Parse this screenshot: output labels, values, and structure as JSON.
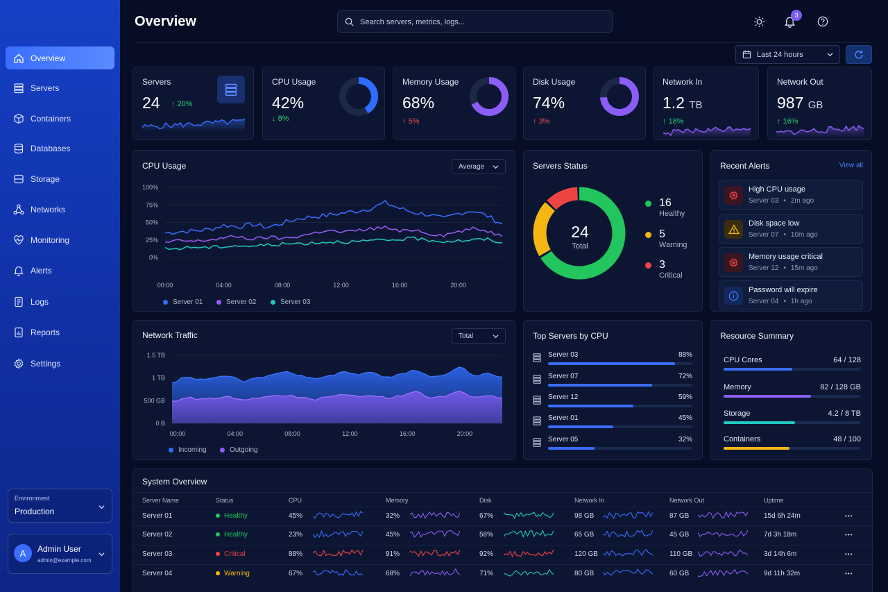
{
  "sidebar": {
    "items": [
      {
        "label": "Overview",
        "icon": "home-icon",
        "active": true
      },
      {
        "label": "Servers",
        "icon": "server-icon"
      },
      {
        "label": "Containers",
        "icon": "cube-icon"
      },
      {
        "label": "Databases",
        "icon": "database-icon"
      },
      {
        "label": "Storage",
        "icon": "storage-icon"
      },
      {
        "label": "Networks",
        "icon": "network-icon"
      },
      {
        "label": "Monitoring",
        "icon": "monitoring-icon"
      },
      {
        "label": "Alerts",
        "icon": "bell-icon"
      },
      {
        "label": "Logs",
        "icon": "document-icon"
      },
      {
        "label": "Reports",
        "icon": "report-icon"
      },
      {
        "label": "Settings",
        "icon": "gear-icon"
      }
    ],
    "environment": {
      "label": "Environment",
      "value": "Production"
    },
    "user": {
      "initial": "A",
      "name": "Admin User",
      "email": "admin@example.com"
    }
  },
  "header": {
    "title": "Overview",
    "search_placeholder": "Search servers, metrics, logs...",
    "notification_count": "3",
    "time_range": "Last 24 hours"
  },
  "kpis": [
    {
      "title": "Servers",
      "value": "24",
      "unit": "",
      "change": "20%",
      "direction": "up"
    },
    {
      "title": "CPU Usage",
      "value": "42%",
      "unit": "",
      "change": "8%",
      "direction": "down",
      "ring": 0.42,
      "ring_color": "#2f6cff"
    },
    {
      "title": "Memory Usage",
      "value": "68%",
      "unit": "",
      "change": "5%",
      "direction": "up",
      "ring": 0.68,
      "ring_color": "#8b5cf6"
    },
    {
      "title": "Disk Usage",
      "value": "74%",
      "unit": "",
      "change": "3%",
      "direction": "up",
      "ring": 0.74,
      "ring_color": "#8b5cf6"
    },
    {
      "title": "Network In",
      "value": "1.2",
      "unit": "TB",
      "change": "18%",
      "direction": "up"
    },
    {
      "title": "Network Out",
      "value": "987",
      "unit": "GB",
      "change": "16%",
      "direction": "up"
    }
  ],
  "cpu_chart": {
    "title": "CPU Usage",
    "selector": "Average",
    "chart_data": {
      "type": "line",
      "x": [
        "00:00",
        "01:00",
        "02:00",
        "03:00",
        "04:00",
        "05:00",
        "06:00",
        "07:00",
        "08:00",
        "09:00",
        "10:00",
        "11:00",
        "12:00",
        "13:00",
        "14:00",
        "15:00",
        "16:00",
        "17:00",
        "18:00",
        "19:00",
        "20:00",
        "21:00",
        "22:00",
        "23:00"
      ],
      "xticks": [
        "00:00",
        "04:00",
        "08:00",
        "12:00",
        "16:00",
        "20:00"
      ],
      "yticks": [
        "0%",
        "25%",
        "50%",
        "75%",
        "100%"
      ],
      "ylim": [
        0,
        100
      ],
      "series": [
        {
          "name": "Server 01",
          "color": "#3b6cff",
          "values": [
            35,
            37,
            38,
            40,
            46,
            44,
            47,
            43,
            49,
            55,
            58,
            60,
            63,
            66,
            70,
            78,
            70,
            64,
            61,
            55,
            63,
            67,
            59,
            48
          ]
        },
        {
          "name": "Server 02",
          "color": "#9b5cf6",
          "values": [
            21,
            24,
            23,
            25,
            28,
            30,
            26,
            29,
            27,
            30,
            34,
            39,
            36,
            38,
            41,
            43,
            37,
            40,
            34,
            32,
            37,
            41,
            38,
            30
          ]
        },
        {
          "name": "Server 03",
          "color": "#22c7c0",
          "values": [
            12,
            13,
            15,
            14,
            16,
            17,
            16,
            18,
            19,
            20,
            21,
            22,
            23,
            22,
            24,
            24,
            26,
            27,
            25,
            23,
            24,
            25,
            26,
            21
          ]
        }
      ]
    }
  },
  "server_status": {
    "title": "Servers Status",
    "total": "24",
    "total_label": "Total",
    "chart_data": {
      "type": "pie",
      "slices": [
        {
          "name": "Healthy",
          "value": 16,
          "color": "#22c55e"
        },
        {
          "name": "Warning",
          "value": 5,
          "color": "#f5b614"
        },
        {
          "name": "Critical",
          "value": 3,
          "color": "#ef4444"
        }
      ]
    }
  },
  "alerts": {
    "title": "Recent Alerts",
    "view_all": "View all",
    "items": [
      {
        "title": "High CPU usage",
        "server": "Server 03",
        "time": "2m ago",
        "icon": "chip-icon",
        "color": "#ef4444"
      },
      {
        "title": "Disk space low",
        "server": "Server 07",
        "time": "10m ago",
        "icon": "warning-icon",
        "color": "#f5b614"
      },
      {
        "title": "Memory usage critical",
        "server": "Server 12",
        "time": "15m ago",
        "icon": "chip-icon",
        "color": "#ef4444"
      },
      {
        "title": "Password will expire",
        "server": "Server 04",
        "time": "1h ago",
        "icon": "info-icon",
        "color": "#3b82f6"
      }
    ]
  },
  "network_chart": {
    "title": "Network Traffic",
    "selector": "Total",
    "chart_data": {
      "type": "area",
      "x": [
        "00:00",
        "01:00",
        "02:00",
        "03:00",
        "04:00",
        "05:00",
        "06:00",
        "07:00",
        "08:00",
        "09:00",
        "10:00",
        "11:00",
        "12:00",
        "13:00",
        "14:00",
        "15:00",
        "16:00",
        "17:00",
        "18:00",
        "19:00",
        "20:00",
        "21:00",
        "22:00",
        "23:00"
      ],
      "xticks": [
        "00:00",
        "04:00",
        "08:00",
        "12:00",
        "16:00",
        "20:00"
      ],
      "yticks": [
        "0 B",
        "500 GB",
        "1 TB",
        "1.5 TB"
      ],
      "ylim": [
        0,
        1500
      ],
      "series": [
        {
          "name": "Incoming",
          "color": "#2f6cff",
          "values": [
            900,
            1020,
            960,
            1010,
            1040,
            930,
            1000,
            1080,
            1130,
            1050,
            980,
            1060,
            1150,
            1080,
            1120,
            1010,
            1090,
            1180,
            1020,
            1050,
            1250,
            1040,
            1110,
            1020
          ]
        },
        {
          "name": "Outgoing",
          "color": "#8b5cf6",
          "values": [
            480,
            570,
            530,
            550,
            580,
            500,
            560,
            600,
            620,
            560,
            530,
            590,
            640,
            600,
            620,
            560,
            610,
            700,
            560,
            590,
            720,
            580,
            620,
            560
          ]
        }
      ]
    }
  },
  "top_servers": {
    "title": "Top Servers by CPU",
    "items": [
      {
        "name": "Server 03",
        "value": "88%",
        "pct": 0.88
      },
      {
        "name": "Server 07",
        "value": "72%",
        "pct": 0.72
      },
      {
        "name": "Server 12",
        "value": "59%",
        "pct": 0.59
      },
      {
        "name": "Server 01",
        "value": "45%",
        "pct": 0.45
      },
      {
        "name": "Server 05",
        "value": "32%",
        "pct": 0.32
      }
    ]
  },
  "resources": {
    "title": "Resource Summary",
    "items": [
      {
        "name": "CPU Cores",
        "value": "64 / 128",
        "pct": 0.5,
        "color": "#3b6cff"
      },
      {
        "name": "Memory",
        "value": "82 / 128 GB",
        "pct": 0.64,
        "color": "#8b5cf6"
      },
      {
        "name": "Storage",
        "value": "4.2 / 8 TB",
        "pct": 0.525,
        "color": "#22c7c0"
      },
      {
        "name": "Containers",
        "value": "48 / 100",
        "pct": 0.48,
        "color": "#f5b614"
      }
    ]
  },
  "system": {
    "title": "System Overview",
    "headers": [
      "Server Name",
      "Status",
      "CPU",
      "Memory",
      "Disk",
      "Network In",
      "Network Out",
      "Uptime"
    ],
    "rows": [
      {
        "name": "Server 01",
        "status": "Healthy",
        "status_color": "#22c55e",
        "cpu": "45%",
        "memory": "32%",
        "disk": "67%",
        "net_in": "98 GB",
        "net_out": "87 GB",
        "uptime": "15d 6h 24m",
        "cpu_color": "#3b6cff"
      },
      {
        "name": "Server 02",
        "status": "Healthy",
        "status_color": "#22c55e",
        "cpu": "23%",
        "memory": "45%",
        "disk": "58%",
        "net_in": "65 GB",
        "net_out": "45 GB",
        "uptime": "7d 3h 18m",
        "cpu_color": "#3b6cff"
      },
      {
        "name": "Server 03",
        "status": "Critical",
        "status_color": "#ef4444",
        "cpu": "88%",
        "memory": "91%",
        "disk": "92%",
        "net_in": "120 GB",
        "net_out": "110 GB",
        "uptime": "3d 14h 6m",
        "cpu_color": "#ef4444"
      },
      {
        "name": "Server 04",
        "status": "Warning",
        "status_color": "#f5b614",
        "cpu": "67%",
        "memory": "68%",
        "disk": "71%",
        "net_in": "80 GB",
        "net_out": "60 GB",
        "uptime": "9d 11h 32m",
        "cpu_color": "#3b6cff"
      }
    ]
  }
}
